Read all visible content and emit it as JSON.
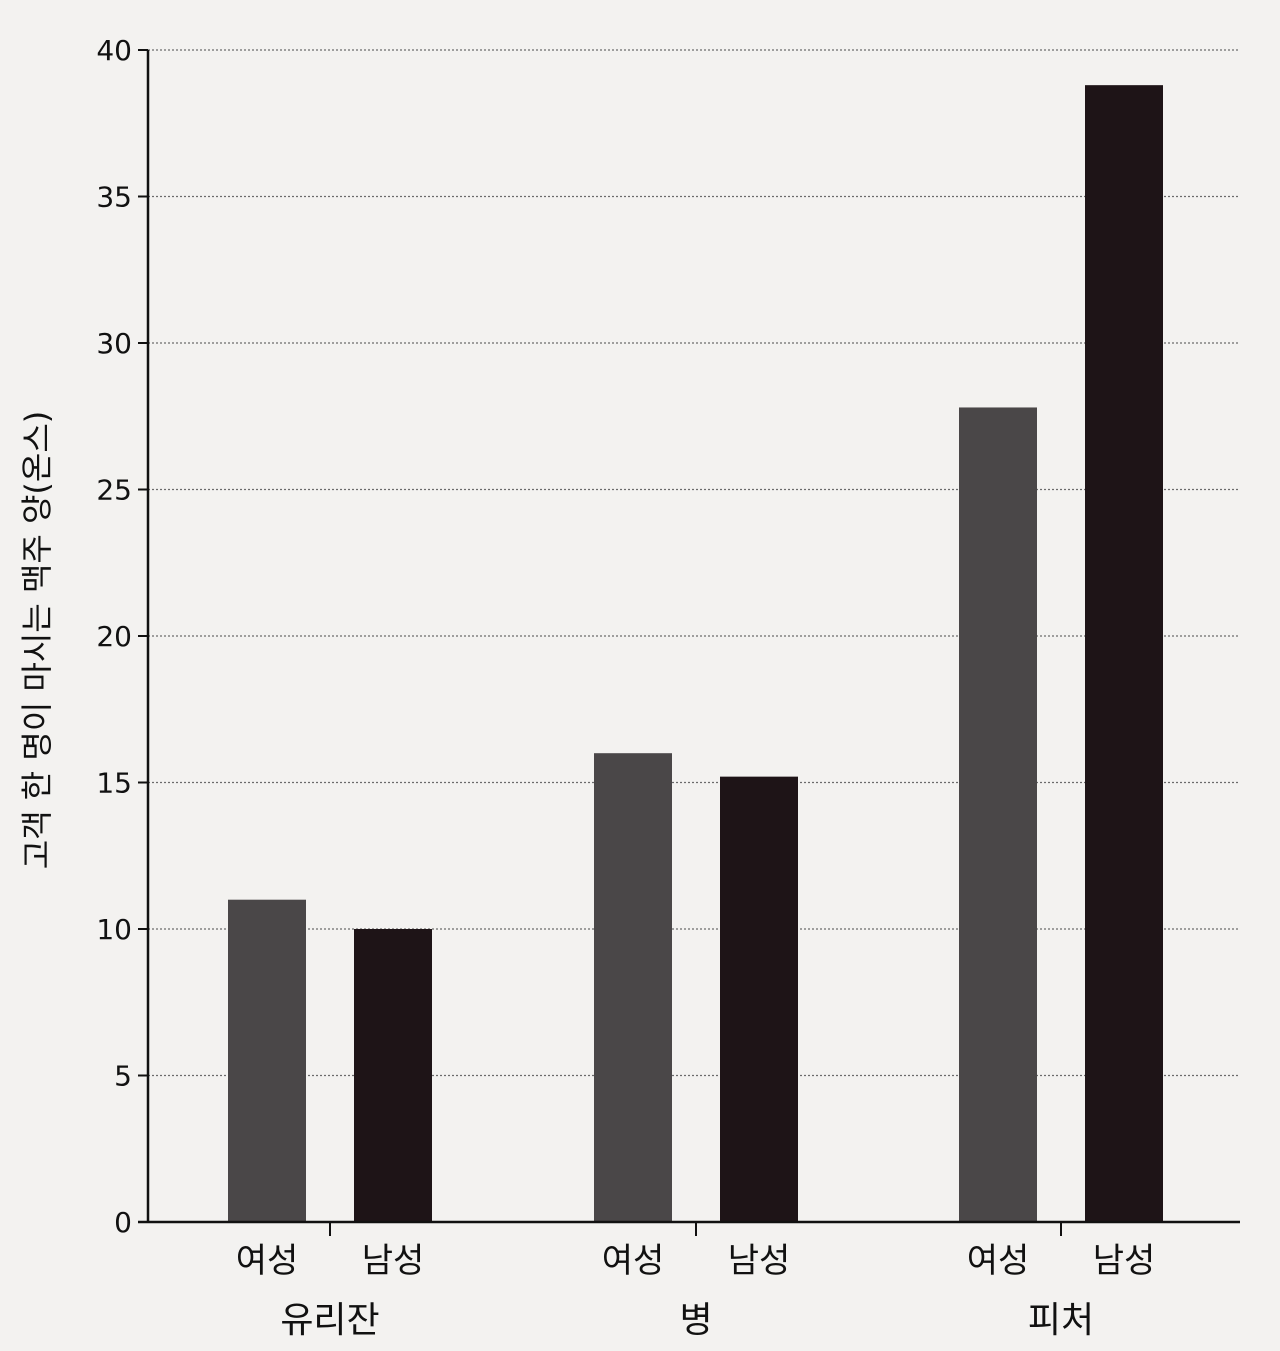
{
  "chart_data": {
    "type": "bar",
    "ylabel": "고객 한 명이 마시는 맥주 양(온스)",
    "ylim": [
      0,
      40
    ],
    "yticks": [
      0,
      5,
      10,
      15,
      20,
      25,
      30,
      35,
      40
    ],
    "grid": true,
    "groups": [
      {
        "label": "유리잔",
        "bars": [
          {
            "label": "여성",
            "value": 11,
            "color": "#4a4748"
          },
          {
            "label": "남성",
            "value": 10,
            "color": "#1e1417"
          }
        ]
      },
      {
        "label": "병",
        "bars": [
          {
            "label": "여성",
            "value": 16,
            "color": "#4a4748"
          },
          {
            "label": "남성",
            "value": 15.2,
            "color": "#1e1417"
          }
        ]
      },
      {
        "label": "피처",
        "bars": [
          {
            "label": "여성",
            "value": 27.8,
            "color": "#4a4748"
          },
          {
            "label": "남성",
            "value": 38.8,
            "color": "#1e1417"
          }
        ]
      }
    ]
  }
}
